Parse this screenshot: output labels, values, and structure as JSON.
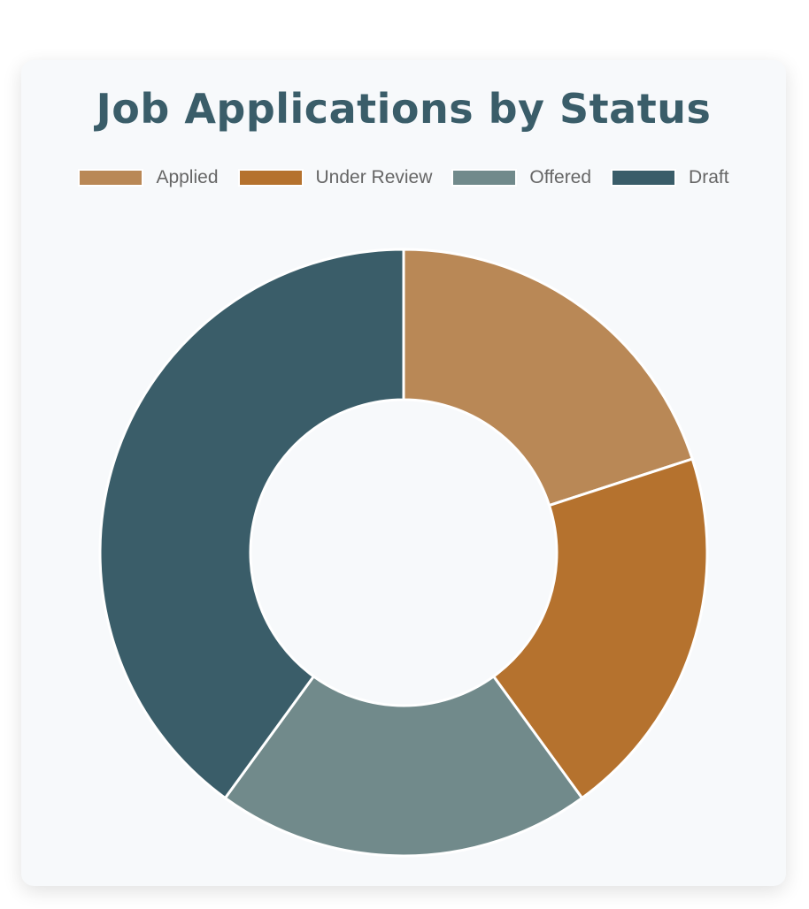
{
  "chart_data": {
    "type": "pie",
    "variant": "doughnut",
    "title": "Job Applications by Status",
    "categories": [
      "Applied",
      "Under Review",
      "Offered",
      "Draft"
    ],
    "values": [
      1,
      1,
      1,
      2
    ],
    "colors": [
      "#b98856",
      "#b5722e",
      "#718a8b",
      "#3a5d69"
    ],
    "legend_position": "top"
  }
}
